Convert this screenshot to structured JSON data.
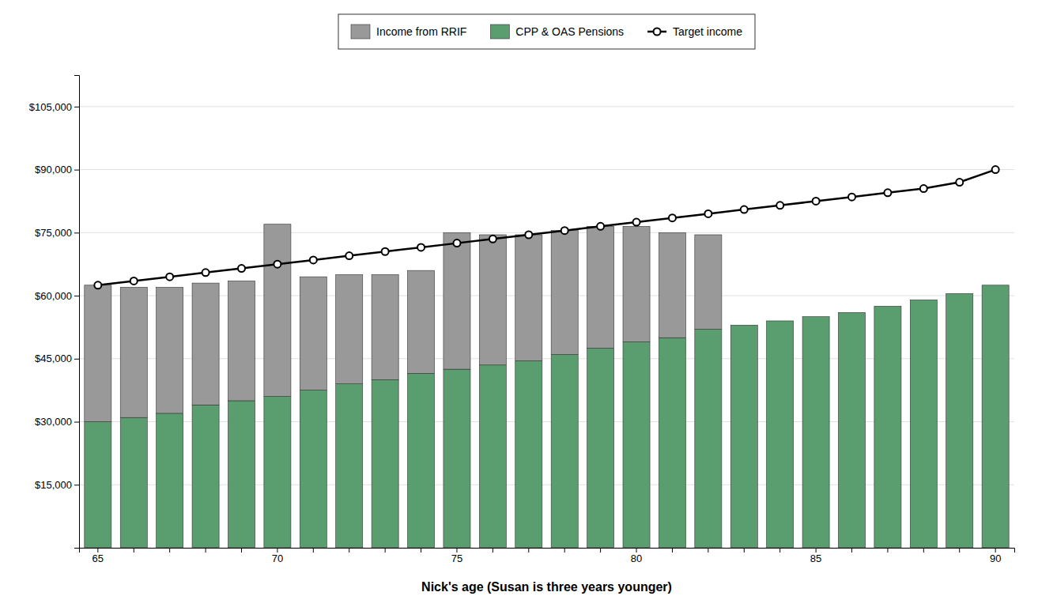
{
  "chart_data": {
    "type": "bar",
    "stacked": true,
    "xlabel": "Nick's age (Susan is three years younger)",
    "categories": [
      "65",
      null,
      null,
      null,
      null,
      "70",
      null,
      null,
      null,
      null,
      "75",
      null,
      null,
      null,
      null,
      "80",
      null,
      null,
      null,
      null,
      "85",
      null,
      null,
      null,
      null,
      "90"
    ],
    "series": [
      {
        "name": "CPP & OAS Pensions",
        "type": "bar",
        "color": "#5a9e6f",
        "values": [
          30000,
          31000,
          32000,
          34000,
          35000,
          36000,
          37500,
          39000,
          40000,
          41500,
          42500,
          43500,
          44500,
          46000,
          47500,
          49000,
          50000,
          52000,
          53000,
          54000,
          55000,
          56000,
          57500,
          59000,
          60500,
          62500
        ]
      },
      {
        "name": "Income from RRIF",
        "type": "bar",
        "color": "#999999",
        "values": [
          32500,
          31000,
          30000,
          29000,
          28500,
          41000,
          27000,
          26000,
          25000,
          24500,
          32500,
          31000,
          30000,
          29500,
          29000,
          27500,
          25000,
          22500,
          0,
          0,
          0,
          0,
          0,
          0,
          0,
          0
        ]
      },
      {
        "name": "Target income",
        "type": "line",
        "color": "#000000",
        "marker": "circle",
        "line_style": "solid",
        "values": [
          62500,
          63500,
          64500,
          65500,
          66500,
          67500,
          68500,
          69500,
          70500,
          71500,
          72500,
          73500,
          74500,
          75500,
          76500,
          77500,
          78500,
          79500,
          80500,
          81500,
          82500,
          83500,
          84500,
          85500,
          87000,
          90000
        ]
      }
    ],
    "ylim": [
      0,
      112500
    ],
    "yticks": [
      {
        "value": 0,
        "label": null
      },
      {
        "value": 15000,
        "label": "$15,000"
      },
      {
        "value": 30000,
        "label": "$30,000"
      },
      {
        "value": 45000,
        "label": "$45,000"
      },
      {
        "value": 60000,
        "label": "$60,000"
      },
      {
        "value": 75000,
        "label": "$75,000"
      },
      {
        "value": 90000,
        "label": "$90,000"
      },
      {
        "value": 105000,
        "label": "$105,000"
      }
    ],
    "grid": true,
    "legend": "top"
  }
}
